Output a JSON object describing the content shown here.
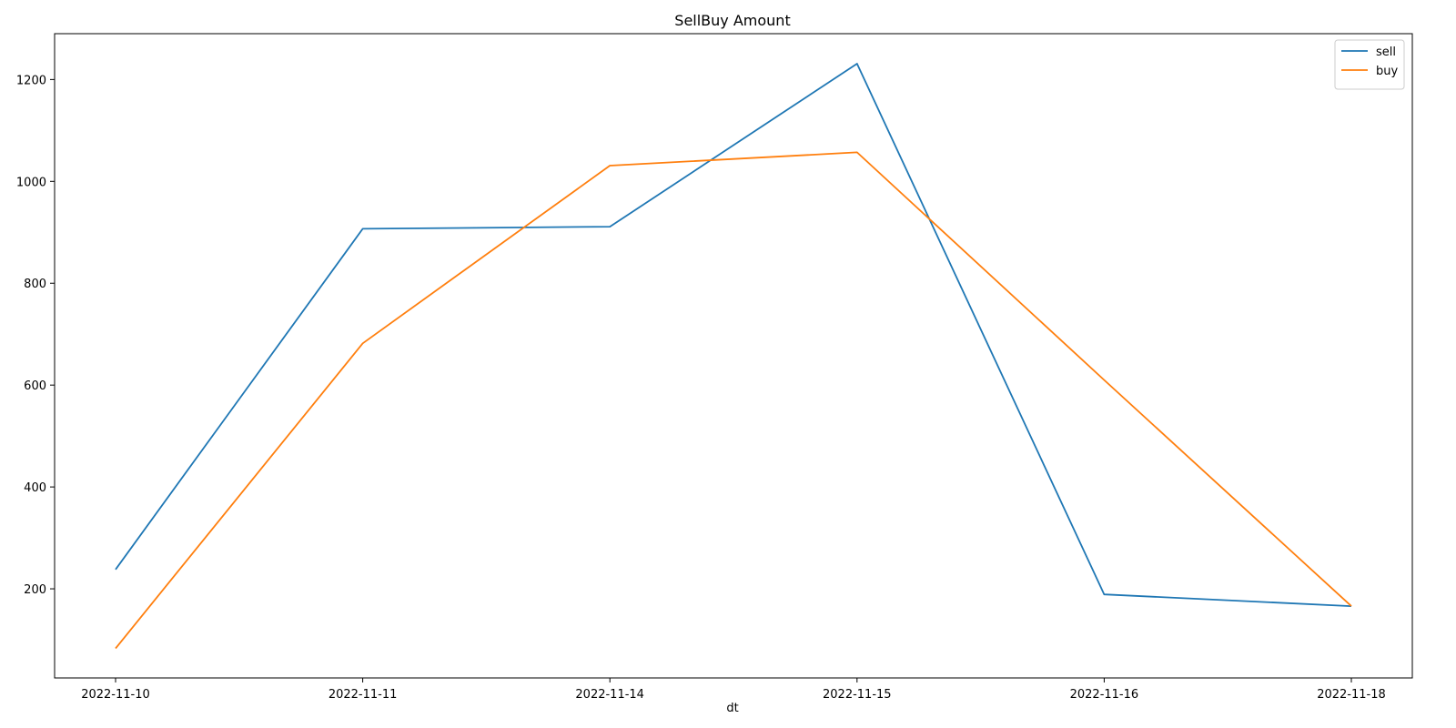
{
  "chart_data": {
    "type": "line",
    "title": "SellBuy Amount",
    "xlabel": "dt",
    "ylabel": "",
    "categories": [
      "2022-11-10",
      "2022-11-11",
      "2022-11-14",
      "2022-11-15",
      "2022-11-16",
      "2022-11-18"
    ],
    "yticks": [
      200,
      400,
      600,
      800,
      1000,
      1200
    ],
    "ylim": [
      25,
      1290
    ],
    "grid": false,
    "legend_position": "top-right",
    "series": [
      {
        "name": "sell",
        "color": "#1f77b4",
        "values": [
          238,
          907,
          911,
          1231,
          189,
          166
        ]
      },
      {
        "name": "buy",
        "color": "#ff7f0e",
        "values": [
          83,
          682,
          1031,
          1057,
          610,
          166
        ]
      }
    ]
  }
}
